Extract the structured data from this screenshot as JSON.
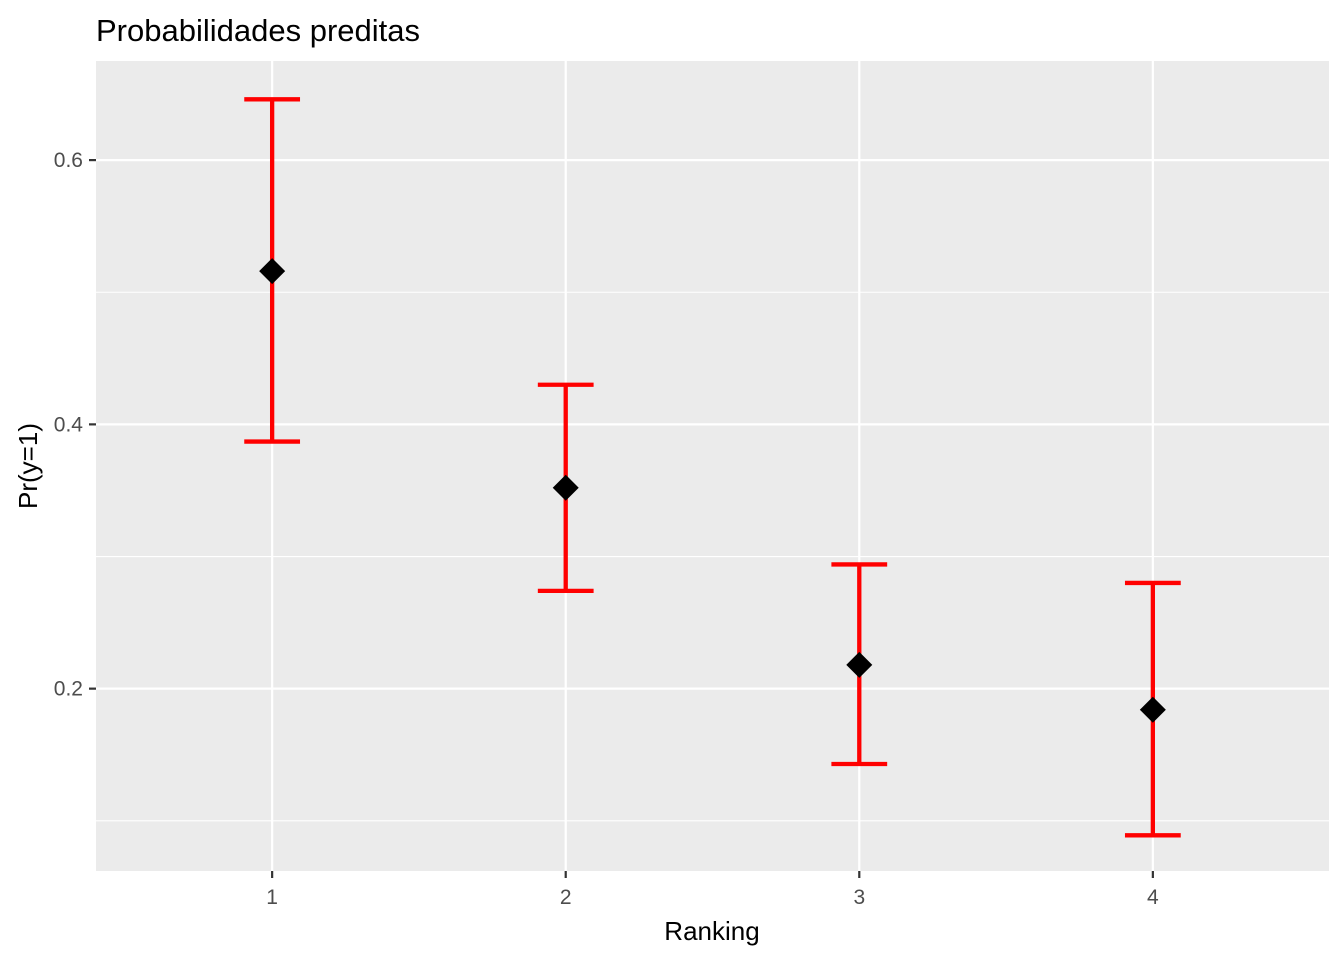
{
  "chart_data": {
    "type": "scatter",
    "title": "Probabilidades preditas",
    "xlabel": "Ranking",
    "ylabel": "Pr(y=1)",
    "x": [
      1,
      2,
      3,
      4
    ],
    "x_tick_labels": [
      "1",
      "2",
      "3",
      "4"
    ],
    "y_ticks": [
      0.2,
      0.4,
      0.6
    ],
    "y_tick_labels": [
      "0.2",
      "0.4",
      "0.6"
    ],
    "xlim": [
      0.4,
      4.6
    ],
    "ylim": [
      0.062,
      0.675
    ],
    "grid": true,
    "points": [
      {
        "x": 1,
        "y": 0.516,
        "lower": 0.387,
        "upper": 0.646
      },
      {
        "x": 2,
        "y": 0.352,
        "lower": 0.274,
        "upper": 0.43
      },
      {
        "x": 3,
        "y": 0.218,
        "lower": 0.143,
        "upper": 0.294
      },
      {
        "x": 4,
        "y": 0.184,
        "lower": 0.089,
        "upper": 0.28
      }
    ],
    "colors": {
      "panel_background": "#ebebeb",
      "grid_major": "#ffffff",
      "error_bar": "#ff0000",
      "point": "#000000"
    }
  }
}
